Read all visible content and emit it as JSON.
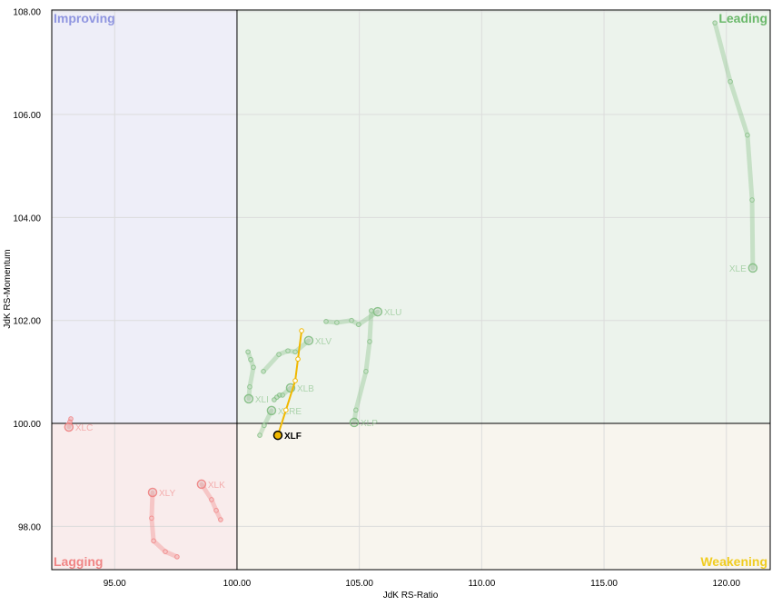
{
  "chart_data": {
    "type": "scatter",
    "title": "",
    "xlabel": "JdK RS-Ratio",
    "ylabel": "JdK RS-Momentum",
    "xlim": [
      92.43,
      121.79
    ],
    "ylim": [
      97.16,
      108.03
    ],
    "center": [
      100,
      100
    ],
    "x_ticks": [
      95,
      100,
      105,
      110,
      115,
      120
    ],
    "y_ticks": [
      98,
      100,
      102,
      104,
      106,
      108
    ],
    "x_tick_labels": [
      "95.00",
      "100.00",
      "105.00",
      "110.00",
      "115.00",
      "120.00"
    ],
    "y_tick_labels": [
      "98.00",
      "100.00",
      "102.00",
      "104.00",
      "106.00",
      "108.00"
    ],
    "grid": true,
    "quadrants": [
      {
        "name": "Improving",
        "position": "top-left",
        "fill": "#eeeef8",
        "color": "#8f95e0"
      },
      {
        "name": "Leading",
        "position": "top-right",
        "fill": "#ecf3ec",
        "color": "#6ab86a"
      },
      {
        "name": "Lagging",
        "position": "bottom-left",
        "fill": "#f9ecec",
        "color": "#f08585"
      },
      {
        "name": "Weakening",
        "position": "bottom-right",
        "fill": "#f8f5ee",
        "color": "#f0cc20"
      }
    ],
    "highlighted": "XLF",
    "highlight_color": "#f0b800",
    "series": [
      {
        "name": "XLE",
        "x": [
          119.53,
          120.16,
          120.86,
          121.05,
          121.08
        ],
        "y": [
          107.78,
          106.64,
          105.6,
          104.34,
          103.02
        ]
      },
      {
        "name": "XLU",
        "x": [
          103.64,
          104.08,
          104.68,
          104.97,
          105.75
        ],
        "y": [
          101.98,
          101.96,
          102.0,
          101.92,
          102.17
        ]
      },
      {
        "name": "XLP",
        "x": [
          105.49,
          105.42,
          105.27,
          104.86,
          104.79
        ],
        "y": [
          102.19,
          101.59,
          101.01,
          100.26,
          100.02
        ]
      },
      {
        "name": "XLV",
        "x": [
          101.08,
          101.71,
          102.08,
          102.38,
          102.93
        ],
        "y": [
          101.01,
          101.34,
          101.41,
          101.39,
          101.61
        ]
      },
      {
        "name": "XLI",
        "x": [
          100.45,
          100.56,
          100.67,
          100.52,
          100.48
        ],
        "y": [
          101.39,
          101.24,
          101.09,
          100.71,
          100.48
        ]
      },
      {
        "name": "XLB",
        "x": [
          101.52,
          101.63,
          101.74,
          101.86,
          102.19
        ],
        "y": [
          100.46,
          100.51,
          100.55,
          100.55,
          100.69
        ]
      },
      {
        "name": "XLRE",
        "x": [
          100.93,
          101.11,
          101.41
        ],
        "y": [
          99.77,
          99.96,
          100.25
        ]
      },
      {
        "name": "XLC",
        "x": [
          93.21,
          93.17,
          93.13
        ],
        "y": [
          100.09,
          100.03,
          99.93
        ]
      },
      {
        "name": "XLY",
        "x": [
          97.55,
          97.07,
          96.59,
          96.51,
          96.55
        ],
        "y": [
          97.41,
          97.51,
          97.72,
          98.16,
          98.66
        ]
      },
      {
        "name": "XLK",
        "x": [
          99.33,
          99.15,
          98.96,
          98.55
        ],
        "y": [
          98.13,
          98.31,
          98.52,
          98.82
        ]
      },
      {
        "name": "XLF",
        "x": [
          102.64,
          102.49,
          102.38,
          102.0,
          101.67
        ],
        "y": [
          101.8,
          101.25,
          100.83,
          100.26,
          99.77
        ]
      }
    ]
  }
}
